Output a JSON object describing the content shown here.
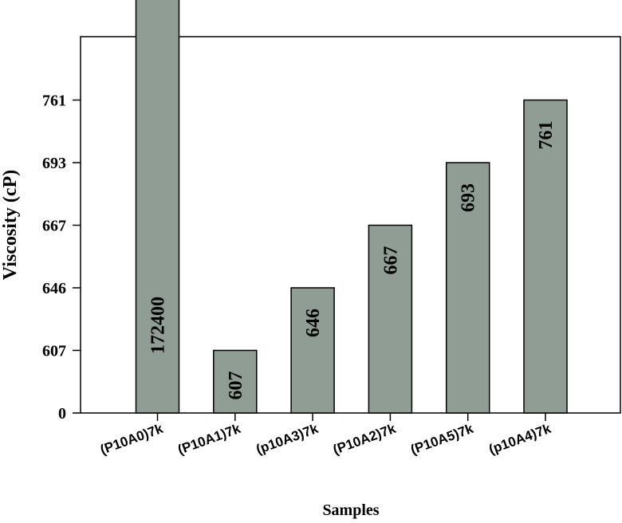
{
  "chart_data": {
    "type": "bar",
    "xlabel": "Samples",
    "ylabel": "Viscosity (cP)",
    "categories": [
      "(P10A0)7k",
      "(P10A1)7k",
      "(p10A3)7k",
      "(P10A2)7k",
      "(P10A5)7k",
      "(p10A4)7k"
    ],
    "values": [
      172400,
      607,
      646,
      667,
      693,
      761
    ],
    "data_labels": [
      "172400",
      "607",
      "646",
      "667",
      "693",
      "761"
    ],
    "y_ticks": [
      "0",
      "607",
      "646",
      "667",
      "693",
      "761"
    ],
    "y_tick_note": "tick labels are categorical-spaced (non-linear scale); first bar exceeds plot area",
    "bar_color": "#8f9d95",
    "grid": false
  }
}
